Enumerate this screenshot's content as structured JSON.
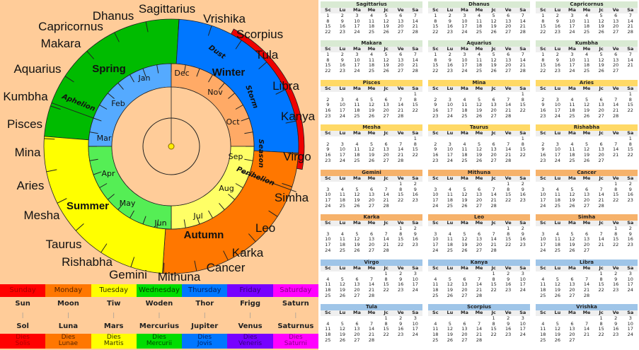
{
  "wheel": {
    "zodiac": [
      "Sagittarius",
      "Dhanus",
      "Capricornus",
      "Makara",
      "Aquarius",
      "Kumbha",
      "Pisces",
      "Mina",
      "Aries",
      "Mesha",
      "Taurus",
      "Rishabha",
      "Gemini",
      "Mithuna",
      "Cancer",
      "Karka",
      "Leo",
      "Simha",
      "Virgo",
      "Kanya",
      "Libra",
      "Tula",
      "Scorpius",
      "Vrishika"
    ],
    "seasons": {
      "spring": "Spring",
      "winter": "Winter",
      "summer": "Summer",
      "autumn": "Autumn"
    },
    "annotations": {
      "dust": "Dust",
      "storm": "Storm",
      "season": "Season",
      "aphelion": "Aphelion",
      "perihelion": "Perihelion"
    },
    "months": [
      "Jan",
      "Feb",
      "Mar",
      "Apr",
      "May",
      "Jun",
      "Jul",
      "Aug",
      "Sep",
      "Oct",
      "Nov",
      "Dec"
    ],
    "colors": {
      "spring": "#00bb00",
      "winter": "#0077ff",
      "autumn": "#ff7700",
      "summer": "#ffff00",
      "dust_storm_season": "#ee0000",
      "q1": "#55aaff",
      "q2": "#55ee55",
      "q3": "#ffff66",
      "q4": "#ffaa66",
      "center": "#ffcc99"
    }
  },
  "weekdays": [
    {
      "day": "Sunday",
      "god": "Sun",
      "latin": "Sol",
      "dies1": "Dies",
      "dies2": "Solis",
      "bg": "#ff0000",
      "fg": "#aa0000"
    },
    {
      "day": "Monday",
      "god": "Moon",
      "latin": "Luna",
      "dies1": "Dies",
      "dies2": "Lunae",
      "bg": "#ff7700",
      "fg": "#552200"
    },
    {
      "day": "Tuesday",
      "god": "Tiw",
      "latin": "Mars",
      "dies1": "Dies",
      "dies2": "Martis",
      "bg": "#ffff00",
      "fg": "#333300"
    },
    {
      "day": "Wednesday",
      "god": "Woden",
      "latin": "Mercurius",
      "dies1": "Dies",
      "dies2": "Mercurii",
      "bg": "#00dd00",
      "fg": "#004400"
    },
    {
      "day": "Thursday",
      "god": "Thor",
      "latin": "Jupiter",
      "dies1": "Dies",
      "dies2": "Jovis",
      "bg": "#0077ff",
      "fg": "#002266"
    },
    {
      "day": "Friday",
      "god": "Frigg",
      "latin": "Venus",
      "dies1": "Dies",
      "dies2": "Veneris",
      "bg": "#7700ff",
      "fg": "#330077"
    },
    {
      "day": "Saturday",
      "god": "Saturn",
      "latin": "Saturnus",
      "dies1": "Dies",
      "dies2": "Saturni",
      "bg": "#ff00ff",
      "fg": "#880088"
    }
  ],
  "calendar": {
    "day_headers": [
      "Sc",
      "Lu",
      "Ma",
      "Me",
      "Jc",
      "Ve",
      "Sa"
    ],
    "months": [
      {
        "name": "Sagittarius",
        "start": 0,
        "days": 28,
        "color": "#d9ead3"
      },
      {
        "name": "Dhanus",
        "start": 0,
        "days": 28,
        "color": "#d9ead3"
      },
      {
        "name": "Capricornus",
        "start": 0,
        "days": 28,
        "color": "#d9ead3"
      },
      {
        "name": "Makara",
        "start": 0,
        "days": 28,
        "color": "#d9ead3"
      },
      {
        "name": "Aquarius",
        "start": 0,
        "days": 28,
        "color": "#d9ead3"
      },
      {
        "name": "Kumbha",
        "start": 0,
        "days": 27,
        "color": "#d9ead3"
      },
      {
        "name": "Pisces",
        "start": 6,
        "days": 28,
        "color": "#ffd966"
      },
      {
        "name": "Mina",
        "start": 6,
        "days": 28,
        "color": "#ffd966"
      },
      {
        "name": "Aries",
        "start": 6,
        "days": 28,
        "color": "#ffd966"
      },
      {
        "name": "Mesha",
        "start": 6,
        "days": 28,
        "color": "#ffd966"
      },
      {
        "name": "Taurus",
        "start": 6,
        "days": 28,
        "color": "#ffd966"
      },
      {
        "name": "Rishabha",
        "start": 6,
        "days": 27,
        "color": "#ffd966"
      },
      {
        "name": "Gemini",
        "start": 5,
        "days": 28,
        "color": "#f6b26b"
      },
      {
        "name": "Mithuna",
        "start": 5,
        "days": 28,
        "color": "#f6b26b"
      },
      {
        "name": "Cancer",
        "start": 5,
        "days": 28,
        "color": "#f6b26b"
      },
      {
        "name": "Karka",
        "start": 5,
        "days": 28,
        "color": "#f6b26b"
      },
      {
        "name": "Leo",
        "start": 5,
        "days": 28,
        "color": "#f6b26b"
      },
      {
        "name": "Simha",
        "start": 5,
        "days": 27,
        "color": "#f6b26b"
      },
      {
        "name": "Virgo",
        "start": 4,
        "days": 28,
        "color": "#9fc5e8"
      },
      {
        "name": "Kanya",
        "start": 4,
        "days": 28,
        "color": "#9fc5e8"
      },
      {
        "name": "Libra",
        "start": 4,
        "days": 28,
        "color": "#9fc5e8"
      },
      {
        "name": "Tula",
        "start": 4,
        "days": 28,
        "color": "#9fc5e8"
      },
      {
        "name": "Scorpius",
        "start": 4,
        "days": 28,
        "color": "#9fc5e8"
      },
      {
        "name": "Vrishka",
        "start": 4,
        "days": 27,
        "color": "#9fc5e8"
      }
    ]
  }
}
